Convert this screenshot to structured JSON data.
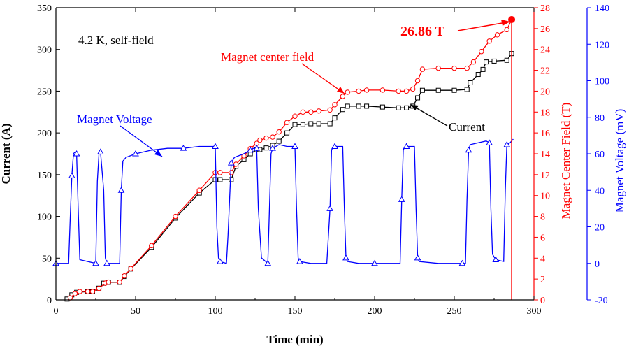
{
  "chart_data": {
    "type": "line",
    "xlabel": "Time (min)",
    "x_ticks": [
      "0",
      "50",
      "100",
      "150",
      "200",
      "250",
      "300"
    ],
    "xlim": [
      0,
      300
    ],
    "y_left": {
      "label": "Current (A)",
      "lim": [
        0,
        350
      ],
      "ticks": [
        "0",
        "50",
        "100",
        "150",
        "200",
        "250",
        "300",
        "350"
      ],
      "color": "#000000"
    },
    "y_right1": {
      "label": "Magnet Center Field (T)",
      "lim": [
        0,
        28
      ],
      "ticks": [
        "0",
        "2",
        "4",
        "6",
        "8",
        "10",
        "12",
        "14",
        "16",
        "18",
        "20",
        "22",
        "24",
        "26",
        "28"
      ],
      "color": "#ff0000"
    },
    "y_right2": {
      "label": "Magnet Voltage (mV)",
      "lim": [
        -20,
        140
      ],
      "ticks": [
        "-20",
        "0",
        "20",
        "40",
        "60",
        "80",
        "100",
        "120",
        "140"
      ],
      "color": "#0000ff"
    },
    "annotations": {
      "condition": "4.2 K, self-field",
      "field_label": "Magnet center field",
      "voltage_label": "Magnet Voltage",
      "current_label": "Current",
      "peak_label": "26.86 T"
    },
    "series": [
      {
        "name": "Current",
        "axis": "left",
        "color": "#000000",
        "marker": "square",
        "x": [
          7,
          10,
          13,
          20,
          23,
          27,
          30,
          33,
          40,
          43,
          47,
          60,
          75,
          90,
          100,
          103,
          110,
          113,
          118,
          122,
          126,
          128,
          132,
          136,
          140,
          145,
          150,
          155,
          160,
          165,
          172,
          175,
          180,
          183,
          190,
          195,
          205,
          215,
          220,
          224,
          227,
          230,
          240,
          250,
          258,
          260,
          265,
          268,
          270,
          275,
          283,
          286
        ],
        "y": [
          1,
          6,
          9,
          10,
          10,
          14,
          20,
          21,
          21,
          28,
          37,
          63,
          98,
          128,
          144,
          144,
          144,
          160,
          168,
          175,
          180,
          180,
          182,
          185,
          190,
          200,
          210,
          210,
          211,
          211,
          211,
          218,
          228,
          232,
          232,
          232,
          231,
          230,
          230,
          232,
          242,
          251,
          251,
          251,
          252,
          260,
          270,
          276,
          285,
          286,
          287,
          295
        ]
      },
      {
        "name": "Magnet center field",
        "axis": "right1",
        "color": "#ff0000",
        "marker": "circle",
        "x": [
          9,
          12,
          15,
          20,
          23,
          27,
          31,
          33,
          40,
          43,
          47,
          60,
          75,
          90,
          100,
          103,
          110,
          113,
          118,
          122,
          126,
          128,
          132,
          136,
          140,
          145,
          150,
          155,
          160,
          165,
          172,
          175,
          180,
          183,
          190,
          195,
          205,
          215,
          220,
          224,
          227,
          230,
          240,
          250,
          258,
          262,
          267,
          272,
          277,
          283,
          286
        ],
        "y": [
          0.2,
          0.6,
          0.8,
          0.8,
          0.8,
          1.1,
          1.6,
          1.7,
          1.7,
          2.3,
          3.0,
          5.2,
          8.0,
          10.5,
          12.2,
          12.2,
          12.2,
          13.0,
          13.8,
          14.5,
          15.0,
          15.3,
          15.5,
          15.6,
          16.1,
          17.0,
          17.6,
          18.0,
          18.0,
          18.1,
          18.2,
          18.7,
          19.5,
          19.9,
          20.0,
          20.1,
          20.1,
          20.0,
          20.0,
          20.2,
          21.0,
          22.1,
          22.2,
          22.2,
          22.2,
          22.8,
          23.8,
          24.8,
          25.4,
          25.9,
          26.86
        ]
      },
      {
        "name": "Magnet Voltage",
        "axis": "right2",
        "color": "#0000ff",
        "marker": "triangle",
        "x": [
          0,
          8,
          9,
          10,
          11,
          12,
          13,
          14,
          15,
          25,
          26,
          27,
          28,
          30,
          31,
          32,
          38,
          40,
          41,
          42,
          44,
          50,
          60,
          70,
          80,
          90,
          95,
          100,
          101,
          102,
          103,
          107,
          108,
          110,
          112,
          118,
          122,
          124,
          125,
          126,
          127,
          129,
          133,
          134,
          135,
          136,
          140,
          145,
          150,
          151,
          152,
          153,
          160,
          170,
          172,
          173,
          174,
          175,
          180,
          181,
          182,
          183,
          190,
          200,
          210,
          216,
          217,
          218,
          219,
          220,
          225,
          226,
          227,
          228,
          240,
          255,
          257,
          258,
          259,
          260,
          270,
          272,
          273,
          274,
          276,
          281,
          282,
          283,
          285,
          287
        ],
        "y": [
          0,
          0,
          25,
          48,
          60,
          61,
          60,
          30,
          2,
          0,
          45,
          60,
          61,
          40,
          3,
          0,
          0,
          0,
          40,
          56,
          58,
          60,
          62,
          63,
          63,
          64,
          64,
          64,
          20,
          3,
          1,
          0,
          15,
          55,
          58,
          60,
          62,
          63,
          63,
          63,
          30,
          3,
          0,
          30,
          60,
          63,
          65,
          64,
          64,
          30,
          3,
          1,
          0,
          0,
          30,
          62,
          64,
          64,
          64,
          30,
          3,
          1,
          0,
          0,
          0,
          0,
          35,
          62,
          64,
          64,
          64,
          30,
          3,
          1,
          0,
          0,
          0,
          35,
          62,
          65,
          67,
          66,
          30,
          5,
          2,
          1,
          40,
          65,
          66,
          68
        ]
      }
    ]
  }
}
